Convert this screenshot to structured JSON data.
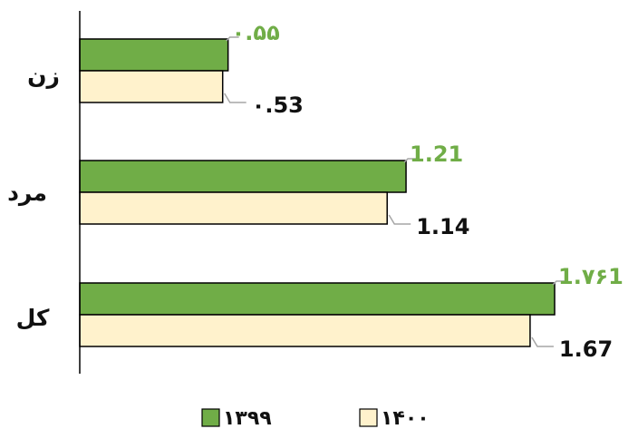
{
  "chart_data": {
    "type": "bar",
    "orientation": "horizontal",
    "categories": [
      "زن",
      "مرد",
      "کل"
    ],
    "series": [
      {
        "name": "۱۳۹۹",
        "color": "#70AD47",
        "values": [
          0.55,
          1.21,
          1.761
        ],
        "labels": [
          "۰.۵۵",
          "1.21",
          "1.۷۶1"
        ],
        "label_color": "#70AD47"
      },
      {
        "name": "۱۴۰۰",
        "color": "#FFF2CC",
        "values": [
          0.53,
          1.14,
          1.67
        ],
        "labels": [
          "۰.53",
          "1.14",
          "1.67"
        ],
        "label_color": "#111111"
      }
    ],
    "legend": "bottom",
    "grid": false
  }
}
